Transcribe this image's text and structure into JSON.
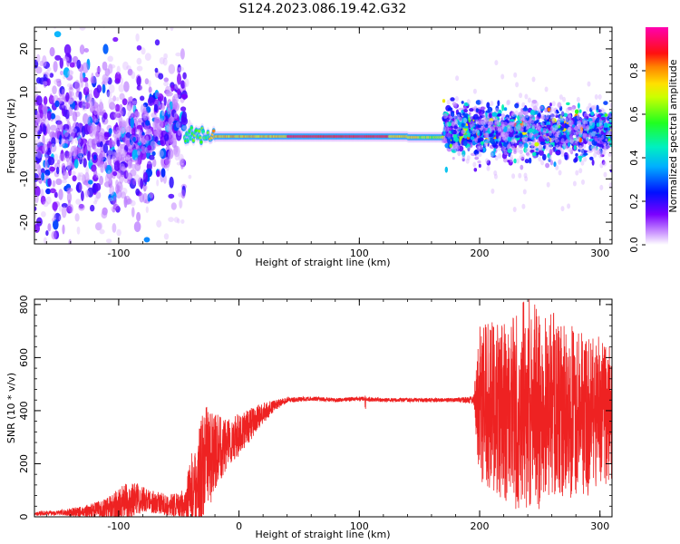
{
  "title": "S124.2023.086.19.42.G32",
  "chart_data": [
    {
      "type": "heatmap",
      "xlabel": "Height of straight line (km)",
      "ylabel": "Frequency (Hz)",
      "xlim": [
        -170,
        310
      ],
      "ylim": [
        -25,
        25
      ],
      "xticks": [
        -100,
        0,
        100,
        200,
        300
      ],
      "yticks": [
        -20,
        -10,
        0,
        10,
        20
      ],
      "colorbar": {
        "label": "Normalized spectral amplitude",
        "range": [
          0,
          1
        ],
        "ticks": [
          0.0,
          0.2,
          0.4,
          0.6,
          0.8
        ],
        "colormap": [
          "#ffffff",
          "#8a00ff",
          "#0000ff",
          "#00d8ff",
          "#00ff40",
          "#ffff00",
          "#ff8000",
          "#ff0000",
          "#ff00aa"
        ]
      },
      "regions": [
        {
          "x": [
            -170,
            -45
          ],
          "description_level": "scattered broadband",
          "freq_range": [
            -25,
            25
          ],
          "amplitude": 0.15
        },
        {
          "x": [
            -45,
            170
          ],
          "center_freq": 0,
          "amplitude": 0.85
        },
        {
          "x": [
            170,
            310
          ],
          "center_freq": 0,
          "freq_range": [
            -8,
            8
          ],
          "amplitude": 0.35
        }
      ]
    },
    {
      "type": "line",
      "xlabel": "Height of straight line (km)",
      "ylabel": "SNR (10 * v/v)",
      "xlim": [
        -170,
        310
      ],
      "ylim": [
        0,
        820
      ],
      "xticks": [
        -100,
        0,
        100,
        200,
        300
      ],
      "yticks": [
        0,
        200,
        400,
        600,
        800
      ],
      "color": "#ee2222",
      "series": [
        {
          "x": [
            -170,
            -150,
            -130,
            -110,
            -95,
            -85,
            -75,
            -60,
            -50,
            -45,
            -40,
            -35,
            -30,
            -25,
            -20,
            -15,
            -10,
            -5,
            0,
            10,
            20,
            30,
            40,
            60,
            80,
            100,
            120,
            140,
            160,
            180,
            195,
            200,
            210,
            220,
            230,
            240,
            250,
            260,
            270,
            280,
            290,
            300,
            310
          ],
          "y": [
            12,
            15,
            20,
            30,
            55,
            70,
            60,
            45,
            40,
            50,
            90,
            130,
            180,
            230,
            240,
            260,
            280,
            290,
            310,
            350,
            390,
            420,
            440,
            445,
            440,
            445,
            440,
            440,
            440,
            440,
            440,
            420,
            420,
            400,
            410,
            430,
            400,
            420,
            380,
            400,
            380,
            400,
            380
          ],
          "amplitude": [
            8,
            10,
            20,
            40,
            70,
            60,
            45,
            40,
            50,
            60,
            140,
            160,
            220,
            200,
            150,
            120,
            100,
            90,
            80,
            60,
            40,
            20,
            10,
            8,
            8,
            8,
            8,
            8,
            8,
            8,
            15,
            300,
            320,
            340,
            380,
            400,
            380,
            360,
            340,
            320,
            300,
            280,
            260
          ]
        }
      ]
    }
  ]
}
